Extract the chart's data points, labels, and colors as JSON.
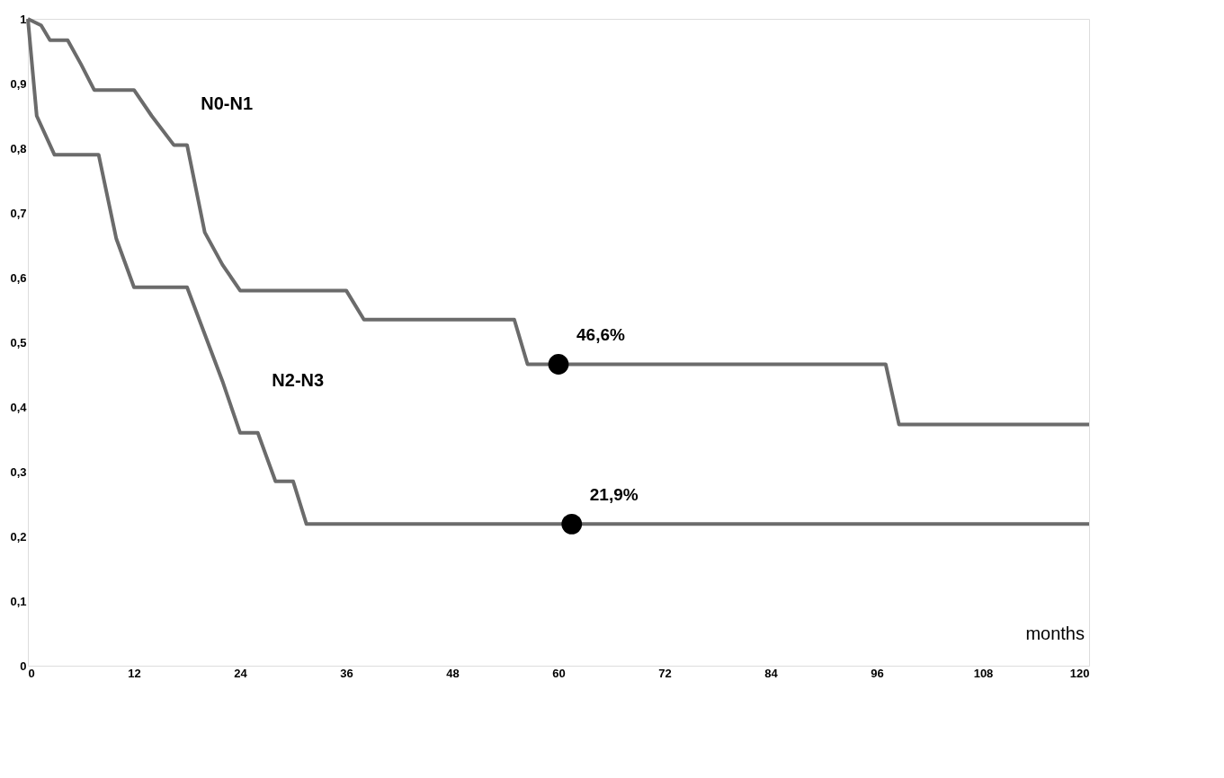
{
  "chart_data": {
    "type": "line",
    "xlabel": "months",
    "xlim": [
      0,
      120
    ],
    "xticks": [
      0,
      12,
      24,
      36,
      48,
      60,
      72,
      84,
      96,
      108,
      120
    ],
    "ylim": [
      0,
      1
    ],
    "yticks": [
      0,
      {
        "value": 0.1,
        "label": "0,1"
      },
      {
        "value": 0.2,
        "label": "0,2"
      },
      {
        "value": 0.3,
        "label": "0,3"
      },
      {
        "value": 0.4,
        "label": "0,4"
      },
      {
        "value": 0.5,
        "label": "0,5"
      },
      {
        "value": 0.6,
        "label": "0,6"
      },
      {
        "value": 0.7,
        "label": "0,7"
      },
      {
        "value": 0.8,
        "label": "0,8"
      },
      {
        "value": 0.9,
        "label": "0,9"
      },
      1
    ],
    "grid": false,
    "line_style": "solid",
    "series": [
      {
        "name": "N0-N1",
        "color": "#6b6b6b",
        "x": [
          0,
          1.5,
          2.5,
          4.5,
          6,
          7.5,
          12,
          14,
          16.5,
          18,
          20,
          22,
          24,
          36,
          38,
          55,
          56.5,
          97,
          98.5,
          120
        ],
        "values": [
          1.0,
          0.99,
          0.967,
          0.967,
          0.93,
          0.89,
          0.89,
          0.85,
          0.805,
          0.805,
          0.67,
          0.62,
          0.58,
          0.58,
          0.535,
          0.535,
          0.466,
          0.466,
          0.373,
          0.373
        ]
      },
      {
        "name": "N2-N3",
        "color": "#6b6b6b",
        "x": [
          0,
          1,
          3,
          8,
          10,
          12,
          18,
          22,
          24,
          26,
          28,
          30,
          31.5,
          120
        ],
        "values": [
          1.0,
          0.85,
          0.79,
          0.79,
          0.66,
          0.585,
          0.585,
          0.44,
          0.36,
          0.36,
          0.285,
          0.285,
          0.219,
          0.219
        ]
      },
      {
        "type": "scatter",
        "marker": "circle",
        "color": "#000000",
        "x": [
          60,
          61.5
        ],
        "values": [
          0.466,
          0.219
        ]
      }
    ],
    "annotations": [
      {
        "text": "46,6%",
        "x": 60,
        "y": 0.466
      },
      {
        "text": "21,9%",
        "x": 61.5,
        "y": 0.219
      }
    ]
  }
}
